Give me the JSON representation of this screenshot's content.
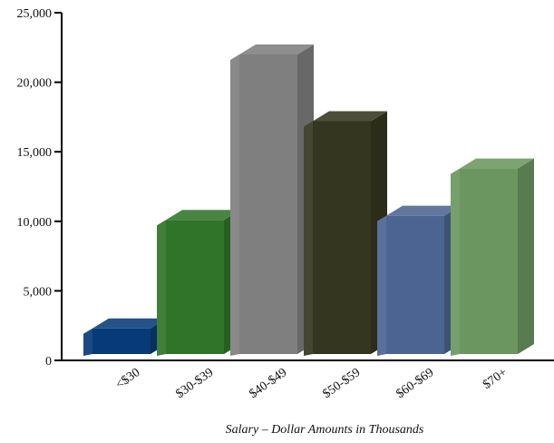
{
  "chart_data": {
    "type": "bar",
    "xlabel": "Salary – Dollar Amounts in Thousands",
    "ylabel": "",
    "ylim": [
      0,
      25000
    ],
    "yticks": [
      0,
      5000,
      10000,
      15000,
      20000,
      25000
    ],
    "ytick_labels": [
      "0",
      "5,000",
      "10,000",
      "15,000",
      "20,000",
      "25,000"
    ],
    "categories": [
      "<$30",
      "$30-$39",
      "$40-$49",
      "$50-$59",
      "$60-$69",
      "$70+"
    ],
    "values": [
      2300,
      10100,
      22000,
      17200,
      10400,
      13800
    ],
    "grid": false,
    "legend": "none",
    "colors": [
      "#073a78",
      "#2f7428",
      "#7f7f80",
      "#34361f",
      "#4c6491",
      "#6b9660"
    ]
  }
}
